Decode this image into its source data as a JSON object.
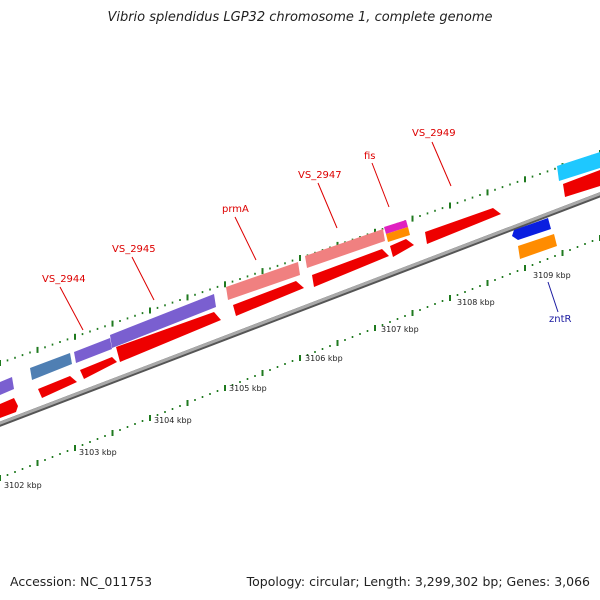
{
  "title": "Vibrio splendidus LGP32 chromosome 1, complete genome",
  "footer": {
    "accession": "Accession: NC_011753",
    "summary": "Topology: circular; Length: 3,299,302 bp; Genes: 3,066"
  },
  "colors": {
    "backbone": "#8a8a8a",
    "cds": "#ee0000",
    "tick": "#1f7a1f",
    "label_red": "#dd0000",
    "label_blue": "#1a1aa0"
  },
  "ruler": {
    "labels": [
      "3102 kbp",
      "3103 kbp",
      "3104 kbp",
      "3105 kbp",
      "3106 kbp",
      "3107 kbp",
      "3108 kbp",
      "3109 kbp"
    ]
  },
  "gene_labels": [
    "VS_2944",
    "VS_2945",
    "prmA",
    "VS_2947",
    "fis",
    "VS_2949",
    "zntR"
  ]
}
